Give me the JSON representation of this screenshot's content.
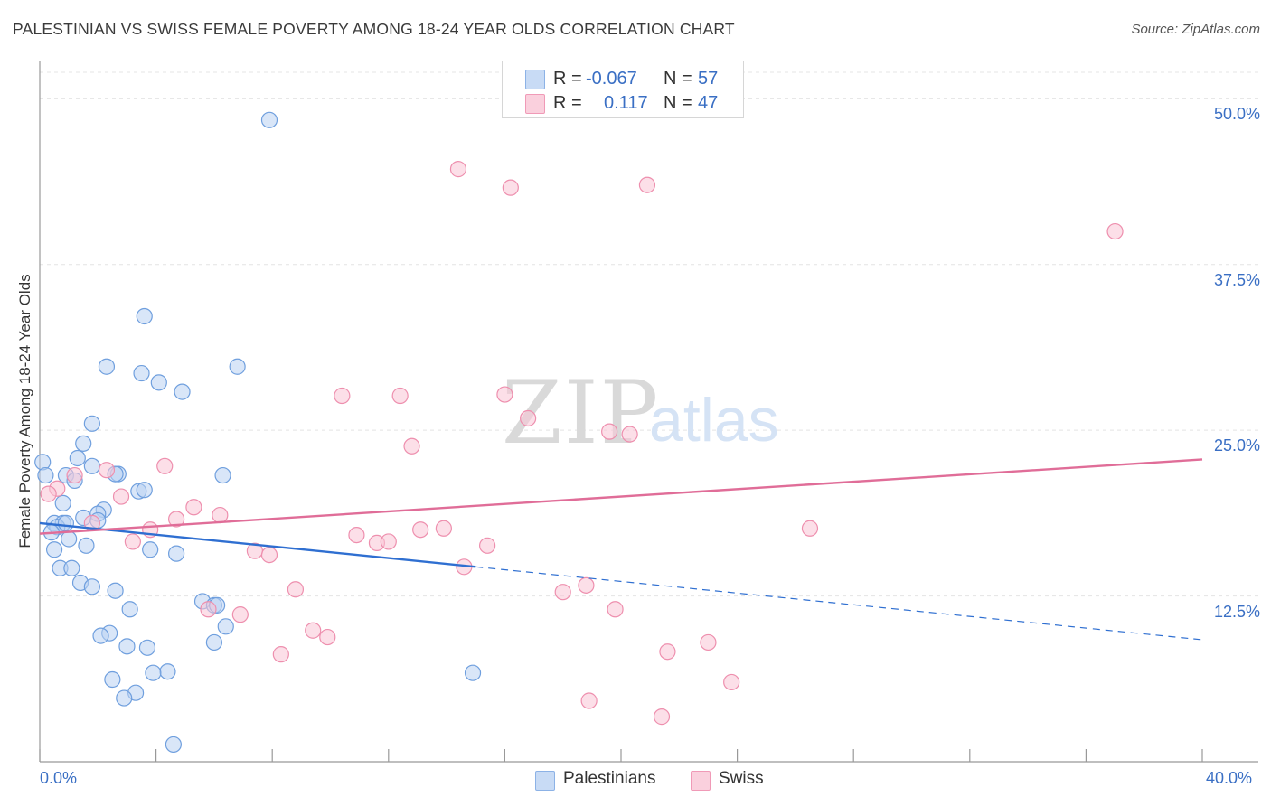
{
  "title": "PALESTINIAN VS SWISS FEMALE POVERTY AMONG 18-24 YEAR OLDS CORRELATION CHART",
  "source": "Source: ZipAtlas.com",
  "watermark": {
    "zip": "ZIP",
    "atlas": "atlas"
  },
  "legend": {
    "rows": [
      {
        "r_label": "R =",
        "r_value": "-0.067",
        "n_label": "N =",
        "n_value": "57",
        "color": "#a9c7ee"
      },
      {
        "r_label": "R =",
        "r_value": "0.117",
        "n_label": "N =",
        "n_value": "47",
        "color": "#f5b8cb"
      }
    ]
  },
  "chart_data": {
    "type": "scatter",
    "title": "PALESTINIAN VS SWISS FEMALE POVERTY AMONG 18-24 YEAR OLDS CORRELATION CHART",
    "xlabel": "",
    "ylabel": "Female Poverty Among 18-24 Year Olds",
    "xlim": [
      0,
      40
    ],
    "ylim": [
      0,
      52
    ],
    "x_tick_labels": [
      "0.0%",
      "40.0%"
    ],
    "y_ticks": [
      12.5,
      25.0,
      37.5,
      50.0
    ],
    "y_tick_labels": [
      "12.5%",
      "25.0%",
      "37.5%",
      "50.0%"
    ],
    "grid": "horizontal dashed",
    "colors": {
      "Palestinians": "#6f9fde",
      "Swiss": "#ee8fae",
      "blue_line": "#2f6fd1",
      "pink_line": "#e06d98"
    },
    "series": [
      {
        "name": "Palestinians",
        "points": [
          [
            7.9,
            48.4
          ],
          [
            3.6,
            33.6
          ],
          [
            2.3,
            29.8
          ],
          [
            3.5,
            29.3
          ],
          [
            4.1,
            28.6
          ],
          [
            4.9,
            27.9
          ],
          [
            6.8,
            29.8
          ],
          [
            1.8,
            25.5
          ],
          [
            1.5,
            24.0
          ],
          [
            1.3,
            22.9
          ],
          [
            0.1,
            22.6
          ],
          [
            1.8,
            22.3
          ],
          [
            0.2,
            21.6
          ],
          [
            0.9,
            21.6
          ],
          [
            2.7,
            21.7
          ],
          [
            2.6,
            21.7
          ],
          [
            6.3,
            21.6
          ],
          [
            1.2,
            21.2
          ],
          [
            3.4,
            20.4
          ],
          [
            3.6,
            20.5
          ],
          [
            0.8,
            19.5
          ],
          [
            2.2,
            19.0
          ],
          [
            2.0,
            18.7
          ],
          [
            1.5,
            18.4
          ],
          [
            2.0,
            18.2
          ],
          [
            0.5,
            18.0
          ],
          [
            0.8,
            18.0
          ],
          [
            0.6,
            17.7
          ],
          [
            0.4,
            17.3
          ],
          [
            1.0,
            16.8
          ],
          [
            1.6,
            16.3
          ],
          [
            0.5,
            16.0
          ],
          [
            3.8,
            16.0
          ],
          [
            4.7,
            15.7
          ],
          [
            0.7,
            14.6
          ],
          [
            1.1,
            14.6
          ],
          [
            1.4,
            13.5
          ],
          [
            1.8,
            13.2
          ],
          [
            2.6,
            12.9
          ],
          [
            5.6,
            12.1
          ],
          [
            6.0,
            11.8
          ],
          [
            6.1,
            11.8
          ],
          [
            3.1,
            11.5
          ],
          [
            2.4,
            9.7
          ],
          [
            2.1,
            9.5
          ],
          [
            6.4,
            10.2
          ],
          [
            3.0,
            8.7
          ],
          [
            3.7,
            8.6
          ],
          [
            6.0,
            9.0
          ],
          [
            2.5,
            6.2
          ],
          [
            4.4,
            6.8
          ],
          [
            3.9,
            6.7
          ],
          [
            14.9,
            6.7
          ],
          [
            3.3,
            5.2
          ],
          [
            2.9,
            4.8
          ],
          [
            4.6,
            1.3
          ],
          [
            0.9,
            18.0
          ]
        ]
      },
      {
        "name": "Swiss",
        "points": [
          [
            14.4,
            44.7
          ],
          [
            16.2,
            43.3
          ],
          [
            20.9,
            43.5
          ],
          [
            37.0,
            40.0
          ],
          [
            10.4,
            27.6
          ],
          [
            12.4,
            27.6
          ],
          [
            16.0,
            27.7
          ],
          [
            16.8,
            25.9
          ],
          [
            19.6,
            24.9
          ],
          [
            20.3,
            24.7
          ],
          [
            12.8,
            23.8
          ],
          [
            4.3,
            22.3
          ],
          [
            2.3,
            22.0
          ],
          [
            1.2,
            21.6
          ],
          [
            0.6,
            20.6
          ],
          [
            2.8,
            20.0
          ],
          [
            5.3,
            19.2
          ],
          [
            0.3,
            20.2
          ],
          [
            6.2,
            18.6
          ],
          [
            4.7,
            18.3
          ],
          [
            1.8,
            18.0
          ],
          [
            3.8,
            17.5
          ],
          [
            13.1,
            17.5
          ],
          [
            13.9,
            17.6
          ],
          [
            10.9,
            17.1
          ],
          [
            26.5,
            17.6
          ],
          [
            11.6,
            16.5
          ],
          [
            12.0,
            16.6
          ],
          [
            15.4,
            16.3
          ],
          [
            3.2,
            16.6
          ],
          [
            7.4,
            15.9
          ],
          [
            7.9,
            15.6
          ],
          [
            14.6,
            14.7
          ],
          [
            8.8,
            13.0
          ],
          [
            18.0,
            12.8
          ],
          [
            18.8,
            13.3
          ],
          [
            19.8,
            11.5
          ],
          [
            6.9,
            11.1
          ],
          [
            5.8,
            11.5
          ],
          [
            9.4,
            9.9
          ],
          [
            9.9,
            9.4
          ],
          [
            21.6,
            8.3
          ],
          [
            23.0,
            9.0
          ],
          [
            8.3,
            8.1
          ],
          [
            23.8,
            6.0
          ],
          [
            18.9,
            4.6
          ],
          [
            21.4,
            3.4
          ]
        ]
      }
    ],
    "trend_lines": [
      {
        "series": "Palestinians",
        "solid": [
          [
            0,
            18.0
          ],
          [
            15.0,
            14.7
          ]
        ],
        "dashed": [
          [
            15.0,
            14.7
          ],
          [
            40.0,
            9.2
          ]
        ]
      },
      {
        "series": "Swiss",
        "solid": [
          [
            0,
            17.2
          ],
          [
            40.0,
            22.8
          ]
        ]
      }
    ]
  },
  "bottom_legend": {
    "items": [
      {
        "label": "Palestinians",
        "color": "#a9c7ee"
      },
      {
        "label": "Swiss",
        "color": "#f5b8cb"
      }
    ]
  }
}
